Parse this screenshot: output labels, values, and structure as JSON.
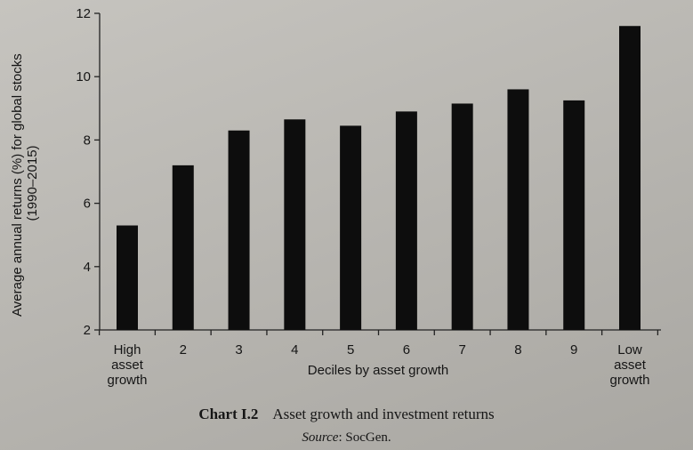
{
  "chart_data": {
    "type": "bar",
    "categories": [
      [
        "High",
        "asset",
        "growth"
      ],
      [
        "2"
      ],
      [
        "3"
      ],
      [
        "4"
      ],
      [
        "5"
      ],
      [
        "6"
      ],
      [
        "7"
      ],
      [
        "8"
      ],
      [
        "9"
      ],
      [
        "Low",
        "asset",
        "growth"
      ]
    ],
    "values": [
      5.3,
      7.2,
      8.3,
      8.65,
      8.45,
      8.9,
      9.15,
      9.6,
      9.25,
      11.6
    ],
    "ylim": [
      2,
      12
    ],
    "yticks": [
      2,
      4,
      6,
      8,
      10,
      12
    ],
    "xlabel": "Deciles by asset growth",
    "ylabel": [
      "Average annual returns (%) for global stocks",
      "(1990–2015)"
    ],
    "bar_color": "#0d0d0d",
    "grid": false
  },
  "caption": {
    "number": "Chart I.2",
    "title": "Asset growth and investment returns",
    "source_label": "Source",
    "source_text": ": SocGen."
  }
}
